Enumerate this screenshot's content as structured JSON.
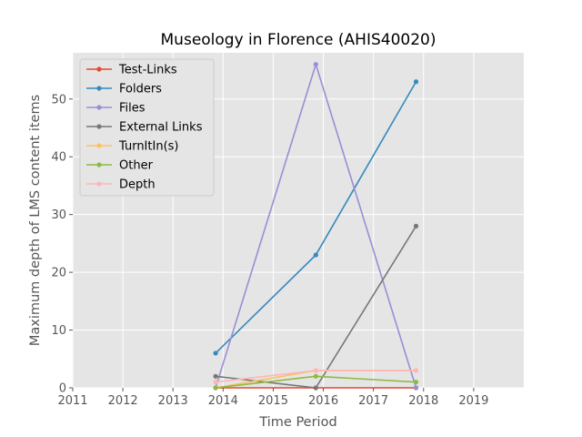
{
  "chart_data": {
    "type": "line",
    "title": "Museology in Florence (AHIS40020)",
    "xlabel": "Time Period",
    "ylabel": "Maximum depth of LMS content items",
    "xlim": [
      2011,
      2020
    ],
    "ylim": [
      0,
      58
    ],
    "xticks": [
      2011,
      2012,
      2013,
      2014,
      2015,
      2016,
      2017,
      2018,
      2019
    ],
    "yticks": [
      0,
      10,
      20,
      30,
      40,
      50
    ],
    "x": [
      2013.85,
      2015.85,
      2017.85
    ],
    "series": [
      {
        "name": "Test-Links",
        "color": "#e24a33",
        "values": [
          0,
          0,
          0
        ]
      },
      {
        "name": "Folders",
        "color": "#348abd",
        "values": [
          6,
          23,
          53
        ]
      },
      {
        "name": "Files",
        "color": "#988ed5",
        "values": [
          0,
          56,
          0
        ]
      },
      {
        "name": "External Links",
        "color": "#777777",
        "values": [
          2,
          0,
          28
        ]
      },
      {
        "name": "TurnItIn(s)",
        "color": "#fbc15e",
        "values": [
          0,
          3,
          3
        ]
      },
      {
        "name": "Other",
        "color": "#8eba42",
        "values": [
          0,
          2,
          1
        ]
      },
      {
        "name": "Depth",
        "color": "#ffb5b8",
        "values": [
          1,
          3,
          3
        ]
      }
    ],
    "grid": true,
    "legend_position": "top-left",
    "background": "#e5e5e5"
  }
}
